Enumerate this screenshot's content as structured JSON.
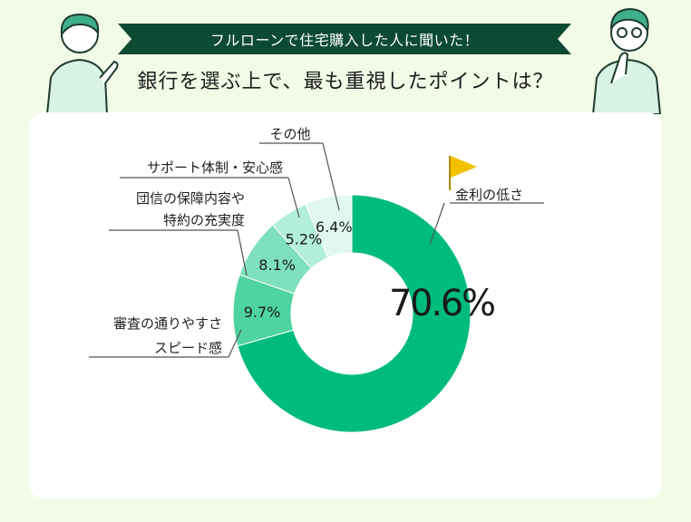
{
  "banner_text": "フルローンで住宅購入した人に聞いた！",
  "question": "銀行を選ぶ上で、最も重視したポイントは？",
  "colors": {
    "background": "#f2fbe7",
    "banner": "#0c4a34",
    "card": "#ffffff",
    "flag": "#f2c200",
    "leader": "#555555"
  },
  "chart_data": {
    "type": "pie",
    "donut": true,
    "categories": [
      "金利の低さ",
      "審査の通りやすさ スピード感",
      "団信の保障内容や 特約の充実度",
      "サポート体制・安心感",
      "その他"
    ],
    "values": [
      70.6,
      9.7,
      8.1,
      5.2,
      6.4
    ],
    "value_labels": [
      "70.6%",
      "9.7%",
      "8.1%",
      "5.2%",
      "6.4%"
    ],
    "label_lines": [
      [
        "金利の低さ"
      ],
      [
        "審査の通りやすさ",
        "スピード感"
      ],
      [
        "団信の保障内容や",
        "特約の充実度"
      ],
      [
        "サポート体制・安心感"
      ],
      [
        "その他"
      ]
    ],
    "colors": [
      "#00bb7e",
      "#4fd3a1",
      "#7fe0bd",
      "#b2eed8",
      "#e0f8ef"
    ],
    "flag_icon": "flag-icon"
  }
}
